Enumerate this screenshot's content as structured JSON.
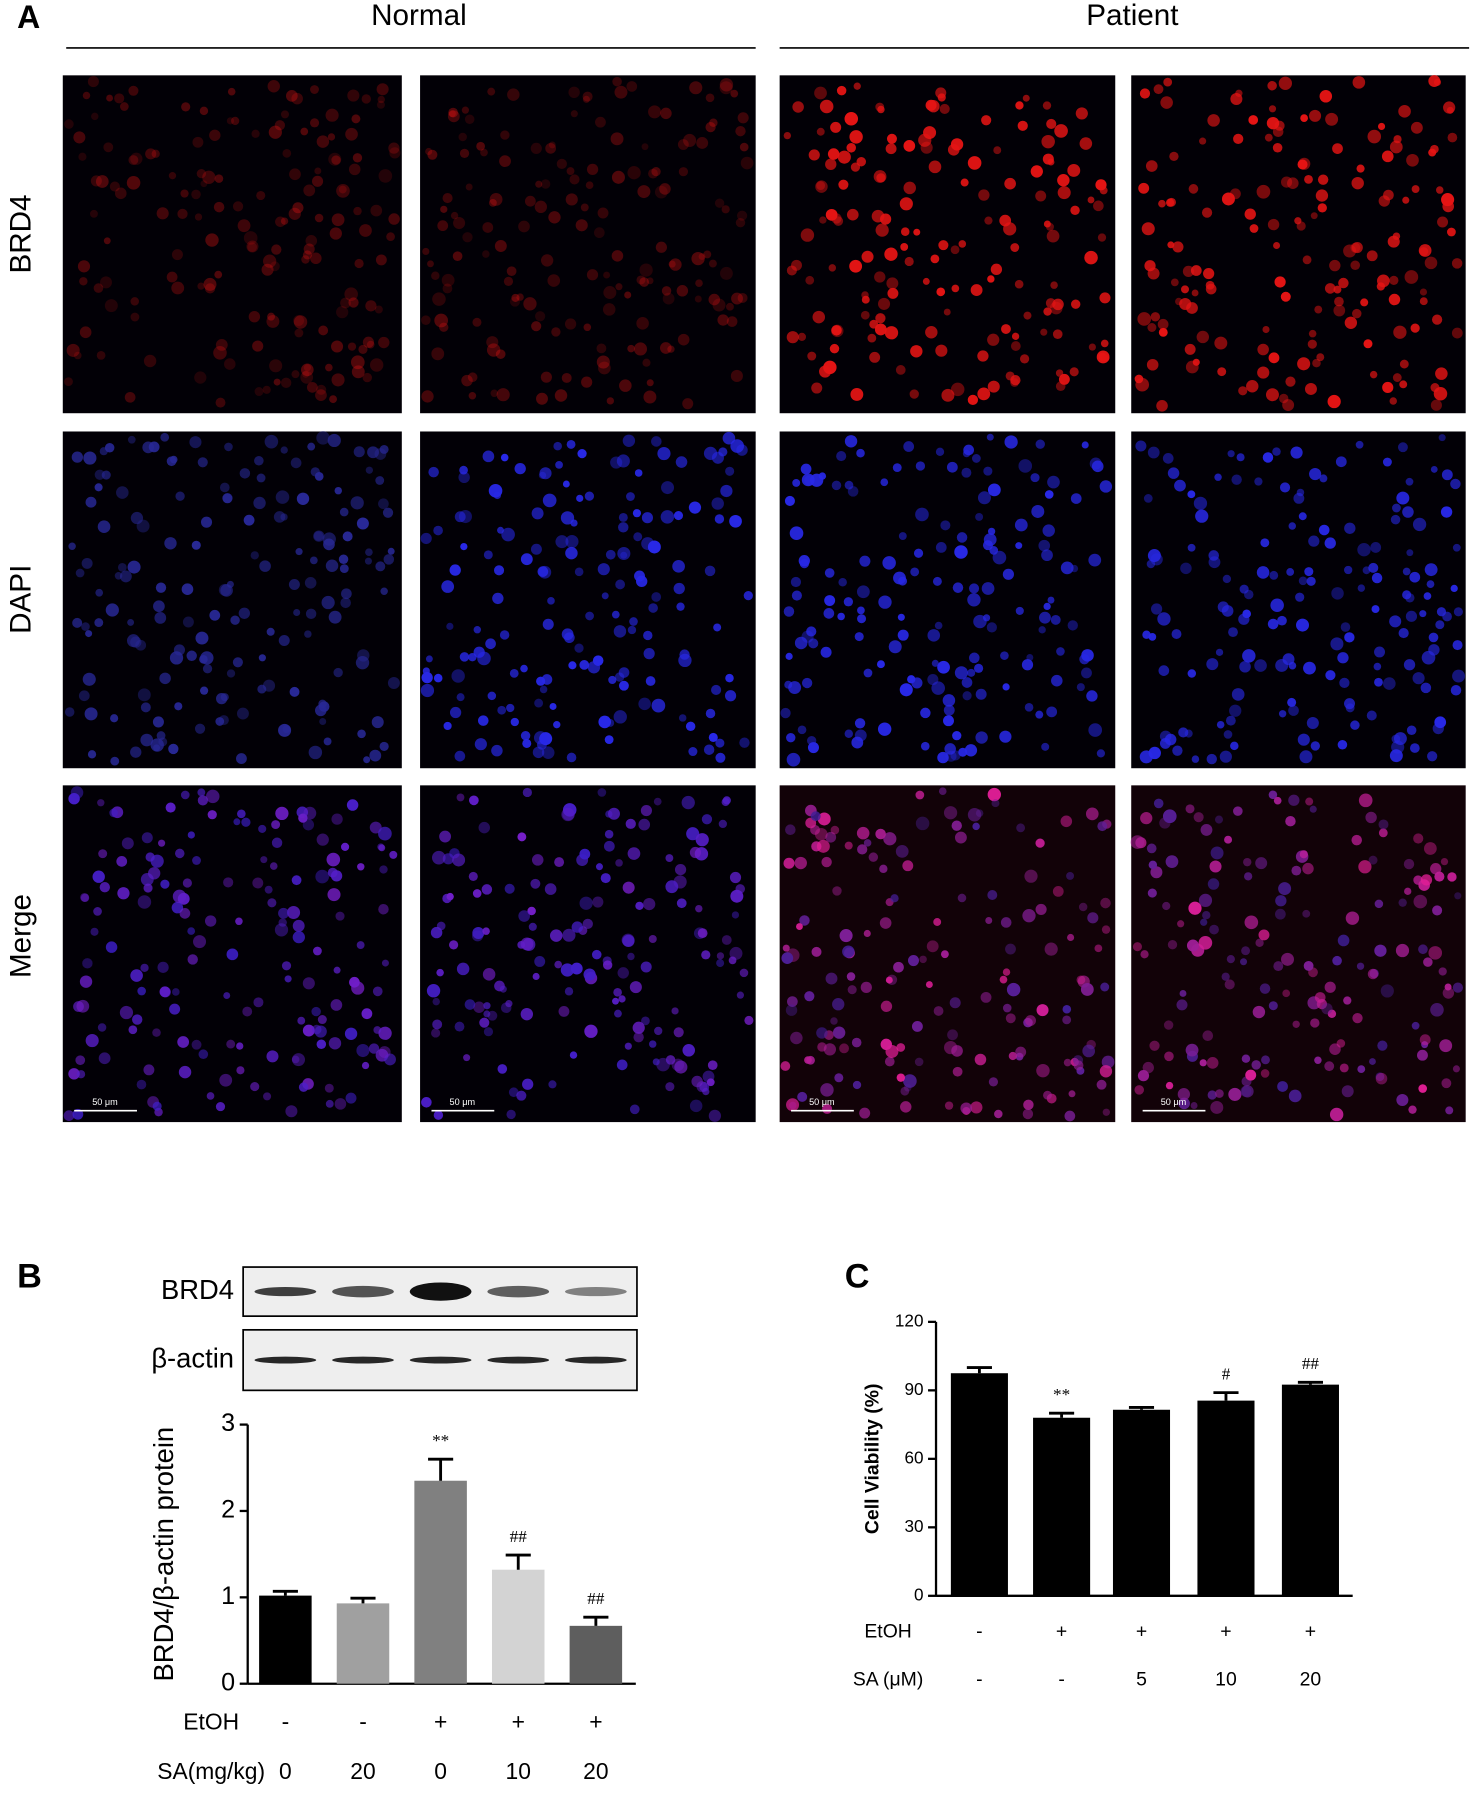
{
  "panel_a": {
    "label": "A",
    "groups": [
      "Normal",
      "Patient"
    ],
    "rows": [
      "BRD4",
      "DAPI",
      "Merge"
    ],
    "scale_bar": "50 μm"
  },
  "chart_data": [
    {
      "type": "bar",
      "label": "B",
      "blots": [
        "BRD4",
        "β-actin"
      ],
      "ylabel": "BRD4/β-actin protein",
      "ylim": [
        0,
        3
      ],
      "yticks": [
        0,
        1,
        2,
        3
      ],
      "values": [
        1.02,
        0.93,
        2.35,
        1.32,
        0.67
      ],
      "errors": [
        0.05,
        0.06,
        0.25,
        0.17,
        0.1
      ],
      "colors": [
        "#000000",
        "#a0a0a0",
        "#808080",
        "#d3d3d3",
        "#5e5e5e"
      ],
      "annotations": [
        null,
        null,
        "**",
        "##",
        "##"
      ],
      "conditions": [
        {
          "name": "EtOH",
          "labels": [
            "-",
            "-",
            "+",
            "+",
            "+"
          ]
        },
        {
          "name": "SA(mg/kg)",
          "labels": [
            "0",
            "20",
            "0",
            "10",
            "20"
          ]
        }
      ]
    },
    {
      "type": "bar",
      "label": "C",
      "ylabel": "Cell Viability (%)",
      "ylim": [
        0,
        120
      ],
      "yticks": [
        0,
        30,
        60,
        90,
        120
      ],
      "values": [
        97.5,
        78,
        81.5,
        85.5,
        92.5
      ],
      "errors": [
        2.5,
        2,
        1,
        3.5,
        1
      ],
      "colors": [
        "#000000",
        "#000000",
        "#000000",
        "#000000",
        "#000000"
      ],
      "annotations": [
        null,
        "**",
        null,
        "#",
        "##"
      ],
      "conditions": [
        {
          "name": "EtOH",
          "labels": [
            "-",
            "+",
            "+",
            "+",
            "+"
          ]
        },
        {
          "name": "SA (μM)",
          "labels": [
            "-",
            "-",
            "5",
            "10",
            "20"
          ]
        }
      ]
    }
  ]
}
